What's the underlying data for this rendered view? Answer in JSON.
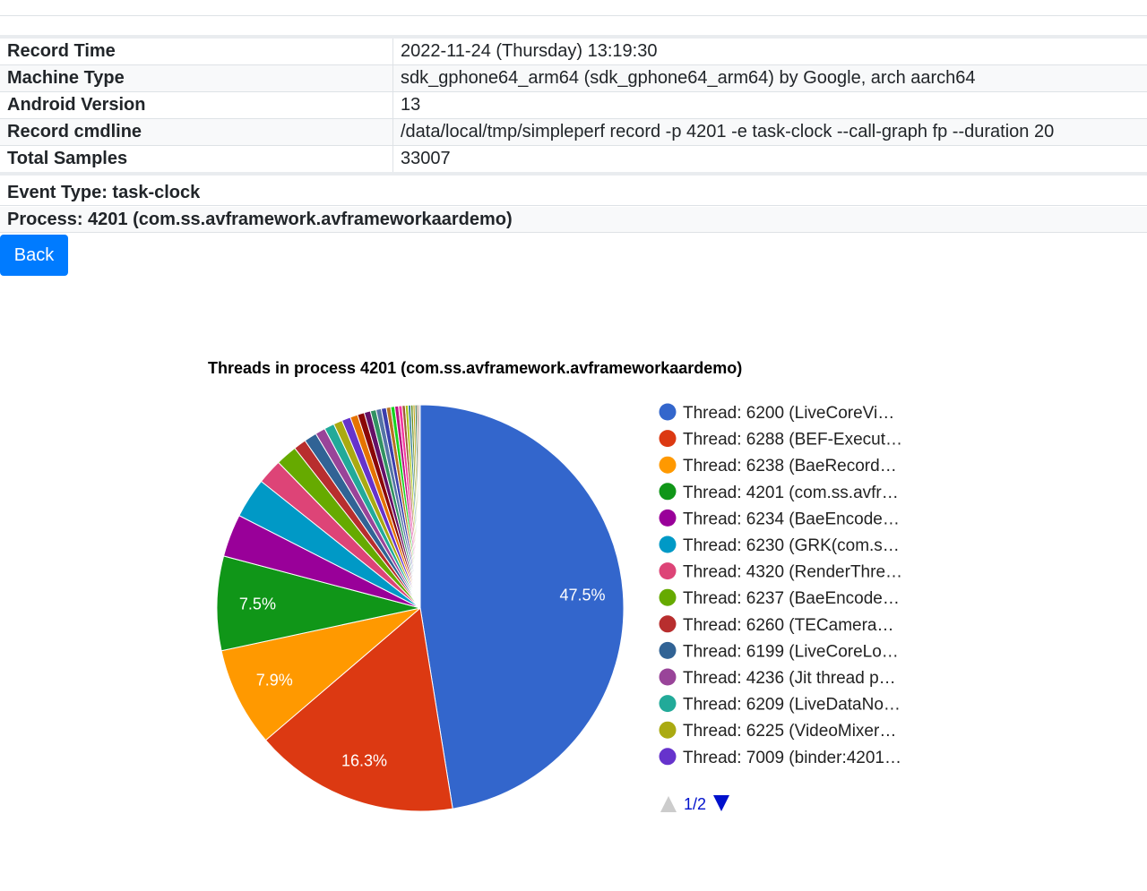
{
  "info": [
    {
      "key": "Record Time",
      "value": "2022-11-24 (Thursday) 13:19:30"
    },
    {
      "key": "Machine Type",
      "value": "sdk_gphone64_arm64 (sdk_gphone64_arm64) by Google, arch aarch64"
    },
    {
      "key": "Android Version",
      "value": "13"
    },
    {
      "key": "Record cmdline",
      "value": "/data/local/tmp/simpleperf record -p 4201 -e task-clock --call-graph fp --duration 20"
    },
    {
      "key": "Total Samples",
      "value": "33007"
    }
  ],
  "event_type": "Event Type: task-clock",
  "process": "Process: 4201 (com.ss.avframework.avframeworkaardemo)",
  "back_label": "Back",
  "colors": {
    "accent": "#007bff"
  },
  "chart_data": {
    "type": "pie",
    "title": "Threads in process 4201 (com.ss.avframework.avframeworkaardemo)",
    "slices": [
      {
        "name": "Thread: 6200 (LiveCoreVi…",
        "value": 47.5,
        "label": "47.5%",
        "color": "#3366cc"
      },
      {
        "name": "Thread: 6288 (BEF-Execut…",
        "value": 16.3,
        "label": "16.3%",
        "color": "#dc3912"
      },
      {
        "name": "Thread: 6238 (BaeRecord…",
        "value": 7.9,
        "label": "7.9%",
        "color": "#ff9900"
      },
      {
        "name": "Thread: 4201 (com.ss.avfr…",
        "value": 7.5,
        "label": "7.5%",
        "color": "#109618"
      },
      {
        "name": "Thread: 6234 (BaeEncode…",
        "value": 3.4,
        "color": "#990099"
      },
      {
        "name": "Thread: 6230 (GRK(com.s…",
        "value": 3.2,
        "color": "#0099c6"
      },
      {
        "name": "Thread: 4320 (RenderThre…",
        "value": 2.0,
        "color": "#dd4477"
      },
      {
        "name": "Thread: 6237 (BaeEncode…",
        "value": 1.7,
        "color": "#66aa00"
      },
      {
        "name": "Thread: 6260 (TECamera…",
        "value": 1.0,
        "color": "#b82e2e"
      },
      {
        "name": "Thread: 6199 (LiveCoreLo…",
        "value": 1.0,
        "color": "#316395"
      },
      {
        "name": "Thread: 4236 (Jit thread p…",
        "value": 0.8,
        "color": "#994499"
      },
      {
        "name": "Thread: 6209 (LiveDataNo…",
        "value": 0.8,
        "color": "#22aa99"
      },
      {
        "name": "Thread: 6225 (VideoMixer…",
        "value": 0.7,
        "color": "#aaaa11"
      },
      {
        "name": "Thread: 7009 (binder:4201…",
        "value": 0.7,
        "color": "#6633cc"
      },
      {
        "value": 0.6,
        "color": "#e67300"
      },
      {
        "value": 0.55,
        "color": "#8b0707"
      },
      {
        "value": 0.5,
        "color": "#651067"
      },
      {
        "value": 0.45,
        "color": "#329262"
      },
      {
        "value": 0.42,
        "color": "#5574a6"
      },
      {
        "value": 0.4,
        "color": "#3b3eac"
      },
      {
        "value": 0.35,
        "color": "#b77322"
      },
      {
        "value": 0.32,
        "color": "#16d620"
      },
      {
        "value": 0.3,
        "color": "#b91383"
      },
      {
        "value": 0.28,
        "color": "#f4359e"
      },
      {
        "value": 0.25,
        "color": "#9c5935"
      },
      {
        "value": 0.23,
        "color": "#a9c413"
      },
      {
        "value": 0.2,
        "color": "#2a778d"
      },
      {
        "value": 0.18,
        "color": "#668d1c"
      },
      {
        "value": 0.16,
        "color": "#bea413"
      },
      {
        "value": 0.14,
        "color": "#0c5922"
      },
      {
        "value": 0.12,
        "color": "#743411"
      },
      {
        "value": 0.15,
        "color": "#cccccc"
      }
    ],
    "legend": {
      "placement": "right",
      "page": "1/2"
    }
  }
}
